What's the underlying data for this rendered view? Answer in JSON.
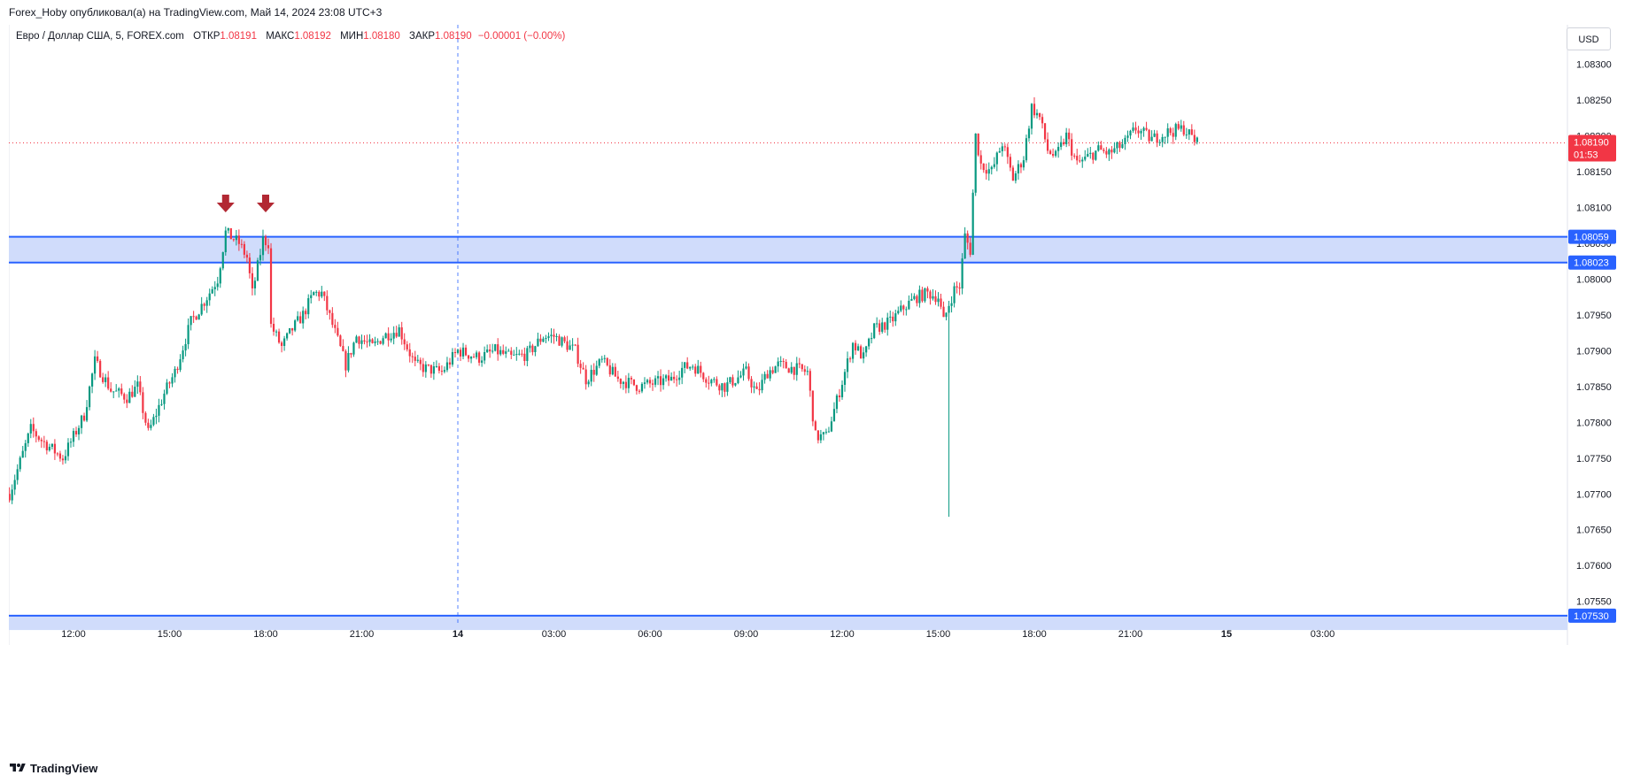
{
  "header": {
    "publisher_line": "Forex_Hoby опубликовал(а) на TradingView.com, Май 14, 2024 23:08 UTC+3"
  },
  "legend": {
    "symbol": "Евро / Доллар США, 5, FOREX.com",
    "open_label": "ОТКР",
    "open_value": "1.08191",
    "high_label": "МАКС",
    "high_value": "1.08192",
    "low_label": "МИН",
    "low_value": "1.08180",
    "close_label": "ЗАКР",
    "close_value": "1.08190",
    "change_value": "−0.00001 (−0.00%)"
  },
  "currency_button": "USD",
  "footer": {
    "brand": "TradingView"
  },
  "colors": {
    "up": "#089981",
    "down": "#f23645",
    "zone_fill": "#d0dcfb",
    "zone_line": "#2962ff",
    "arrow": "#b22833",
    "grid_dash": "#2962ff",
    "price_line": "#f23645"
  },
  "chart_data": {
    "type": "candlestick",
    "timeframe": "5",
    "y_ticks": [
      "1.08300",
      "1.08250",
      "1.08200",
      "1.08150",
      "1.08100",
      "1.08050",
      "1.08000",
      "1.07950",
      "1.07900",
      "1.07850",
      "1.07800",
      "1.07750",
      "1.07700",
      "1.07650",
      "1.07600",
      "1.07550"
    ],
    "x_ticks": [
      "12:00",
      "15:00",
      "18:00",
      "21:00",
      "14",
      "03:00",
      "06:00",
      "09:00",
      "12:00",
      "15:00",
      "18:00",
      "21:00",
      "15",
      "03:00"
    ],
    "ylim": [
      1.0752,
      1.08345
    ],
    "current_price": {
      "value": "1.08190",
      "countdown": "01:53"
    },
    "zones": [
      {
        "upper": "1.08059",
        "lower": "1.08023"
      },
      {
        "upper": "1.07530",
        "lower": "1.07510"
      }
    ],
    "annotations": [
      {
        "type": "arrow-down",
        "x": "16:45",
        "day": 13
      },
      {
        "type": "arrow-down",
        "x": "18:00",
        "day": 13
      }
    ],
    "vertical_marker": "14",
    "price_path": [
      [
        "10:00",
        1.077
      ],
      [
        "10:40",
        1.0779
      ],
      [
        "11:00",
        1.07775
      ],
      [
        "11:40",
        1.0775
      ],
      [
        "12:20",
        1.0781
      ],
      [
        "12:40",
        1.07885
      ],
      [
        "13:10",
        1.07845
      ],
      [
        "13:40",
        1.07835
      ],
      [
        "14:00",
        1.0785
      ],
      [
        "14:20",
        1.07785
      ],
      [
        "14:50",
        1.0784
      ],
      [
        "15:10",
        1.0787
      ],
      [
        "15:40",
        1.0794
      ],
      [
        "16:10",
        1.07975
      ],
      [
        "16:30",
        1.08
      ],
      [
        "16:45",
        1.08065
      ],
      [
        "17:10",
        1.0805
      ],
      [
        "17:25",
        1.0803
      ],
      [
        "17:35",
        1.0798
      ],
      [
        "17:55",
        1.08055
      ],
      [
        "18:05",
        1.0805
      ],
      [
        "18:10",
        1.07935
      ],
      [
        "18:30",
        1.07905
      ],
      [
        "18:50",
        1.0793
      ],
      [
        "19:10",
        1.0795
      ],
      [
        "19:30",
        1.0798
      ],
      [
        "19:45",
        1.0798
      ],
      [
        "20:10",
        1.07925
      ],
      [
        "20:30",
        1.0788
      ],
      [
        "20:50",
        1.0792
      ],
      [
        "21:20",
        1.07905
      ],
      [
        "21:40",
        1.0792
      ],
      [
        "22:10",
        1.0793
      ],
      [
        "22:40",
        1.0788
      ],
      [
        "23:00",
        1.07875
      ],
      [
        "23:30",
        1.0787
      ],
      [
        "00:00",
        1.079
      ],
      [
        "00:40",
        1.0789
      ],
      [
        "01:10",
        1.079
      ],
      [
        "01:40",
        1.0789
      ],
      [
        "02:10",
        1.07895
      ],
      [
        "02:40",
        1.0792
      ],
      [
        "03:00",
        1.0792
      ],
      [
        "03:40",
        1.079
      ],
      [
        "04:00",
        1.0786
      ],
      [
        "04:30",
        1.07885
      ],
      [
        "05:00",
        1.0786
      ],
      [
        "05:40",
        1.0785
      ],
      [
        "06:10",
        1.07855
      ],
      [
        "06:40",
        1.0786
      ],
      [
        "07:00",
        1.07875
      ],
      [
        "07:20",
        1.0788
      ],
      [
        "07:50",
        1.0786
      ],
      [
        "08:20",
        1.0785
      ],
      [
        "08:40",
        1.0786
      ],
      [
        "09:00",
        1.0787
      ],
      [
        "09:20",
        1.0784
      ],
      [
        "09:40",
        1.0787
      ],
      [
        "10:00",
        1.0788
      ],
      [
        "10:30",
        1.07875
      ],
      [
        "10:55",
        1.0787
      ],
      [
        "11:10",
        1.0778
      ],
      [
        "11:30",
        1.0778
      ],
      [
        "11:50",
        1.0783
      ],
      [
        "12:20",
        1.0791
      ],
      [
        "12:40",
        1.0789
      ],
      [
        "13:00",
        1.0793
      ],
      [
        "13:30",
        1.0794
      ],
      [
        "13:55",
        1.0796
      ],
      [
        "14:20",
        1.07975
      ],
      [
        "14:40",
        1.0798
      ],
      [
        "15:00",
        1.07975
      ],
      [
        "15:10",
        1.0794
      ],
      [
        "15:20",
        1.07965
      ],
      [
        "15:30",
        1.07985
      ],
      [
        "15:40",
        1.0799
      ],
      [
        "15:50",
        1.0806
      ],
      [
        "16:00",
        1.0804
      ],
      [
        "16:10",
        1.082
      ],
      [
        "16:20",
        1.0816
      ],
      [
        "16:40",
        1.0815
      ],
      [
        "17:00",
        1.0819
      ],
      [
        "17:20",
        1.0814
      ],
      [
        "17:40",
        1.0817
      ],
      [
        "17:55",
        1.0824
      ],
      [
        "18:10",
        1.08225
      ],
      [
        "18:25",
        1.0818
      ],
      [
        "18:40",
        1.0817
      ],
      [
        "19:00",
        1.082
      ],
      [
        "19:20",
        1.0816
      ],
      [
        "19:40",
        1.0817
      ],
      [
        "20:00",
        1.0818
      ],
      [
        "20:20",
        1.08175
      ],
      [
        "20:50",
        1.0819
      ],
      [
        "21:10",
        1.0821
      ],
      [
        "21:40",
        1.08195
      ],
      [
        "22:10",
        1.08205
      ],
      [
        "22:40",
        1.0821
      ],
      [
        "23:05",
        1.0819
      ]
    ]
  }
}
